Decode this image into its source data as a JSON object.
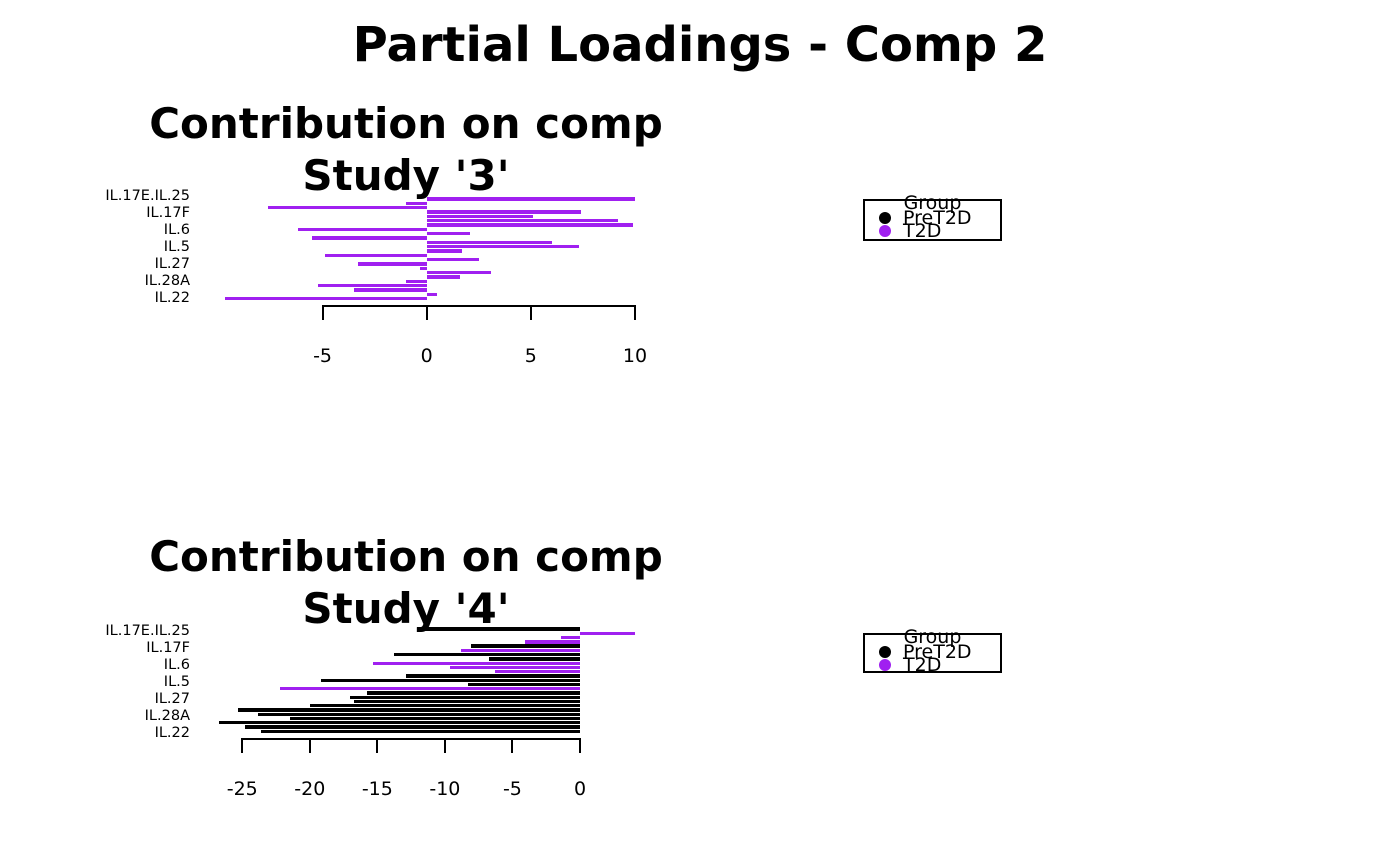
{
  "main_title": "Partial Loadings - Comp 2",
  "colors": {
    "PreT2D": "#000000",
    "T2D": "#A020F0",
    "axis": "#000000",
    "background": "#ffffff"
  },
  "legend": {
    "title": "Group",
    "items": [
      {
        "label": "PreT2D",
        "color": "#000000"
      },
      {
        "label": "T2D",
        "color": "#A020F0"
      }
    ]
  },
  "chart_data": [
    {
      "type": "bar",
      "orientation": "horizontal",
      "title_line1": "Contribution on comp",
      "title_line2": "Study '3'",
      "ylabels": [
        "IL.17E.IL.25",
        "IL.17F",
        "IL.6",
        "IL.5",
        "IL.27",
        "IL.28A",
        "IL.22"
      ],
      "xticks": [
        -5,
        0,
        5,
        10
      ],
      "xlim": [
        -10,
        10
      ],
      "grid": false,
      "legend_position": "right",
      "bars": [
        {
          "value": 10.0,
          "group": "T2D"
        },
        {
          "value": -1.0,
          "group": "T2D"
        },
        {
          "value": -7.6,
          "group": "T2D"
        },
        {
          "value": 7.4,
          "group": "T2D"
        },
        {
          "value": 5.1,
          "group": "T2D"
        },
        {
          "value": 9.2,
          "group": "T2D"
        },
        {
          "value": 9.9,
          "group": "T2D"
        },
        {
          "value": -6.2,
          "group": "T2D"
        },
        {
          "value": 2.1,
          "group": "T2D"
        },
        {
          "value": -5.5,
          "group": "T2D"
        },
        {
          "value": 6.0,
          "group": "T2D"
        },
        {
          "value": 7.3,
          "group": "T2D"
        },
        {
          "value": 1.7,
          "group": "T2D"
        },
        {
          "value": -4.9,
          "group": "T2D"
        },
        {
          "value": 2.5,
          "group": "T2D"
        },
        {
          "value": -3.3,
          "group": "T2D"
        },
        {
          "value": -0.3,
          "group": "T2D"
        },
        {
          "value": 3.1,
          "group": "T2D"
        },
        {
          "value": 1.6,
          "group": "T2D"
        },
        {
          "value": -1.0,
          "group": "T2D"
        },
        {
          "value": -5.2,
          "group": "T2D"
        },
        {
          "value": -3.5,
          "group": "T2D"
        },
        {
          "value": 0.5,
          "group": "T2D"
        },
        {
          "value": -9.7,
          "group": "T2D"
        }
      ]
    },
    {
      "type": "bar",
      "orientation": "horizontal",
      "title_line1": "Contribution on comp",
      "title_line2": "Study '4'",
      "ylabels": [
        "IL.17E.IL.25",
        "IL.17F",
        "IL.6",
        "IL.5",
        "IL.27",
        "IL.28A",
        "IL.22"
      ],
      "xticks": [
        -25,
        -20,
        -15,
        -10,
        -5,
        0
      ],
      "xlim": [
        -27,
        5
      ],
      "grid": false,
      "legend_position": "right",
      "bars": [
        {
          "value": -12.1,
          "group": "PreT2D"
        },
        {
          "value": 4.1,
          "group": "T2D"
        },
        {
          "value": -1.4,
          "group": "T2D"
        },
        {
          "value": -4.1,
          "group": "T2D"
        },
        {
          "value": -8.1,
          "group": "PreT2D"
        },
        {
          "value": -8.8,
          "group": "T2D"
        },
        {
          "value": -13.8,
          "group": "PreT2D"
        },
        {
          "value": -6.7,
          "group": "PreT2D"
        },
        {
          "value": -15.3,
          "group": "T2D"
        },
        {
          "value": -9.6,
          "group": "T2D"
        },
        {
          "value": -6.3,
          "group": "T2D"
        },
        {
          "value": -12.9,
          "group": "PreT2D"
        },
        {
          "value": -19.2,
          "group": "PreT2D"
        },
        {
          "value": -8.3,
          "group": "PreT2D"
        },
        {
          "value": -22.2,
          "group": "T2D"
        },
        {
          "value": -15.8,
          "group": "PreT2D"
        },
        {
          "value": -17.0,
          "group": "PreT2D"
        },
        {
          "value": -16.7,
          "group": "PreT2D"
        },
        {
          "value": -20.0,
          "group": "PreT2D"
        },
        {
          "value": -25.3,
          "group": "PreT2D"
        },
        {
          "value": -23.8,
          "group": "PreT2D"
        },
        {
          "value": -21.5,
          "group": "PreT2D"
        },
        {
          "value": -26.7,
          "group": "PreT2D"
        },
        {
          "value": -24.8,
          "group": "PreT2D"
        },
        {
          "value": -23.6,
          "group": "PreT2D"
        }
      ]
    }
  ]
}
